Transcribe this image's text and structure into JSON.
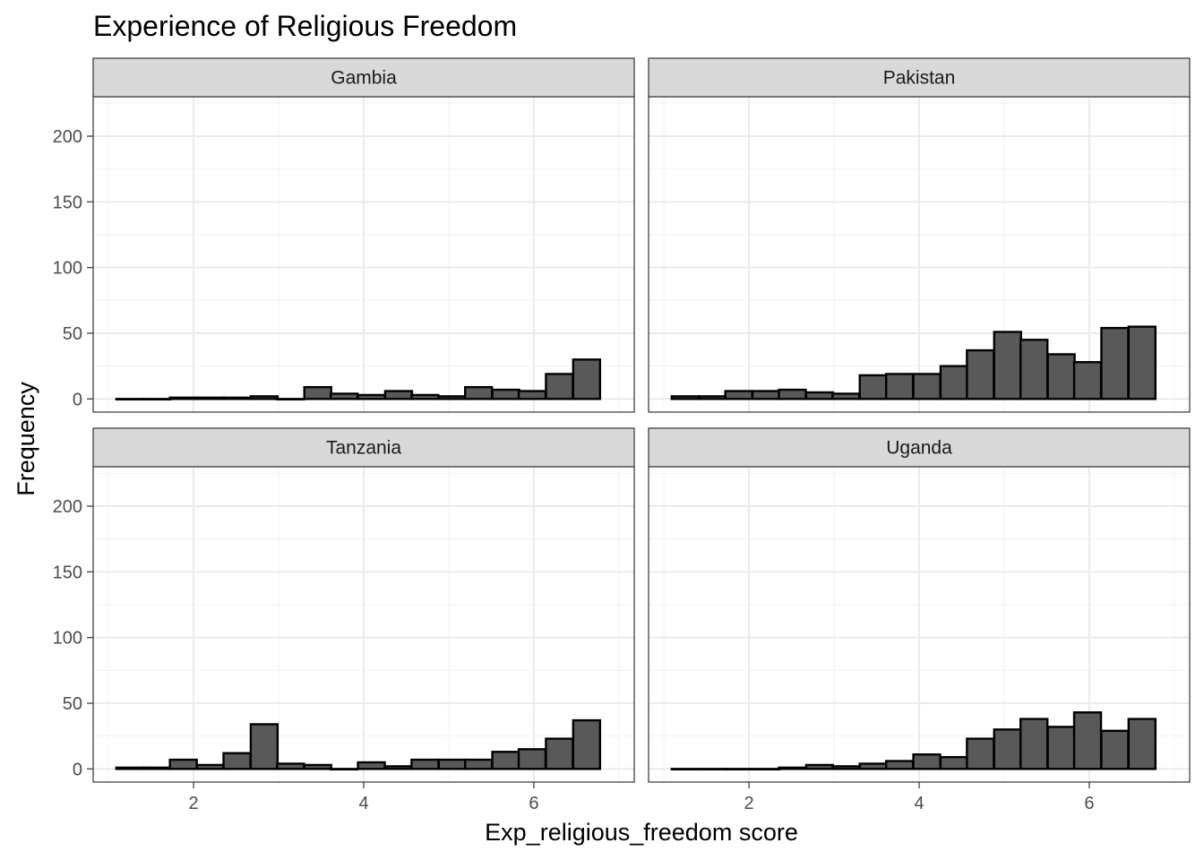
{
  "chart_data": {
    "type": "bar",
    "title": "Experience of Religious Freedom",
    "xlabel": "Exp_religious_freedom score",
    "ylabel": "Frequency",
    "xlim": [
      0.82,
      7.18
    ],
    "ylim": [
      -10,
      230
    ],
    "x_ticks": [
      2,
      4,
      6
    ],
    "y_ticks": [
      0,
      50,
      100,
      150,
      200
    ],
    "grid": true,
    "bin_width": 0.3158,
    "bin_centers": [
      1.25,
      1.57,
      1.88,
      2.2,
      2.51,
      2.83,
      3.14,
      3.46,
      3.77,
      4.09,
      4.41,
      4.72,
      5.04,
      5.35,
      5.67,
      5.98,
      6.3,
      6.62
    ],
    "fill_color": "#595959",
    "outline_color": "#000000",
    "panels": [
      {
        "label": "Gambia",
        "values": [
          0,
          0,
          1,
          1,
          1,
          2,
          0,
          9,
          4,
          3,
          6,
          3,
          2,
          9,
          7,
          6,
          19,
          30
        ]
      },
      {
        "label": "Pakistan",
        "values": [
          2,
          2,
          6,
          6,
          7,
          5,
          4,
          18,
          19,
          19,
          25,
          37,
          51,
          45,
          34,
          28,
          54,
          55
        ]
      },
      {
        "label": "Tanzania",
        "values": [
          1,
          1,
          7,
          3,
          12,
          34,
          4,
          3,
          0,
          5,
          2,
          7,
          7,
          7,
          13,
          15,
          23,
          37
        ]
      },
      {
        "label": "Uganda",
        "values": [
          0,
          0,
          0,
          0,
          1,
          3,
          2,
          4,
          6,
          11,
          9,
          23,
          30,
          38,
          32,
          43,
          29,
          38
        ]
      }
    ]
  }
}
